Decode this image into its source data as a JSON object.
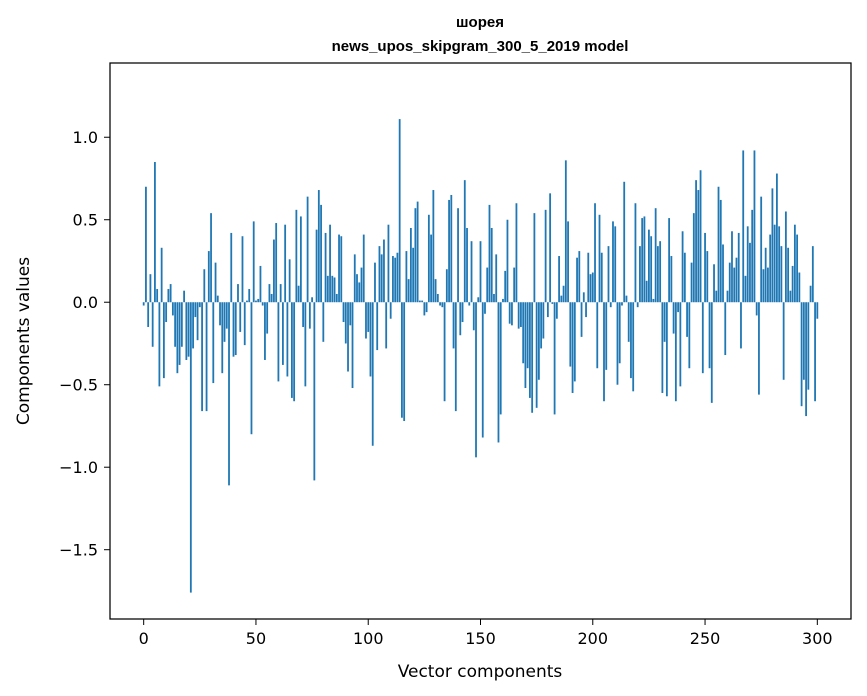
{
  "chart_data": {
    "type": "bar",
    "title": "шорея",
    "subtitle": "news_upos_skipgram_300_5_2019 model",
    "xlabel": "Vector components",
    "ylabel": "Components values",
    "xlim": [
      -15,
      315
    ],
    "ylim": [
      -1.92,
      1.45
    ],
    "xticks": [
      0,
      50,
      100,
      150,
      200,
      250,
      300
    ],
    "yticks": [
      -1.5,
      -1.0,
      -0.5,
      0.0,
      0.5,
      1.0
    ],
    "ytick_labels": [
      "−1.5",
      "−1.0",
      "−0.5",
      "0.0",
      "0.5",
      "1.0"
    ],
    "bar_color": "#1f77b4",
    "x": "0..299",
    "values": [
      -0.02,
      0.7,
      -0.15,
      0.17,
      -0.27,
      0.85,
      0.08,
      -0.51,
      0.33,
      -0.46,
      -0.12,
      0.08,
      0.11,
      -0.08,
      -0.27,
      -0.43,
      -0.38,
      -0.27,
      0.07,
      -0.35,
      -0.33,
      -1.76,
      -0.28,
      -0.09,
      -0.23,
      -0.03,
      -0.66,
      0.2,
      -0.66,
      0.31,
      0.54,
      -0.49,
      0.24,
      0.04,
      -0.14,
      -0.43,
      -0.24,
      -0.16,
      -1.11,
      0.42,
      -0.33,
      -0.32,
      0.11,
      -0.18,
      0.4,
      -0.26,
      0.01,
      0.08,
      -0.8,
      0.49,
      0.01,
      0.02,
      0.22,
      -0.02,
      -0.35,
      -0.19,
      0.11,
      0.05,
      0.38,
      0.48,
      -0.48,
      0.11,
      -0.38,
      0.47,
      -0.45,
      0.26,
      -0.58,
      -0.6,
      0.56,
      0.1,
      0.52,
      -0.15,
      -0.51,
      0.64,
      -0.16,
      0.03,
      -1.08,
      0.44,
      0.68,
      0.59,
      -0.24,
      0.42,
      0.16,
      0.47,
      0.16,
      0.15,
      0.05,
      0.41,
      0.4,
      -0.12,
      -0.25,
      -0.42,
      -0.14,
      -0.52,
      0.29,
      0.17,
      0.12,
      0.21,
      0.41,
      -0.22,
      -0.18,
      -0.45,
      -0.87,
      0.24,
      -0.29,
      0.34,
      0.29,
      0.38,
      -0.28,
      0.47,
      -0.1,
      0.28,
      0.27,
      0.3,
      1.11,
      -0.7,
      -0.72,
      0.31,
      0.14,
      0.45,
      0.33,
      0.57,
      0.61,
      0.01,
      0.01,
      -0.08,
      -0.06,
      0.53,
      0.41,
      0.68,
      0.14,
      0.05,
      -0.02,
      -0.03,
      -0.6,
      0.2,
      0.62,
      0.65,
      -0.28,
      -0.66,
      0.57,
      -0.2,
      -0.12,
      0.74,
      0.45,
      -0.02,
      0.37,
      -0.17,
      -0.94,
      0.03,
      0.37,
      -0.82,
      -0.07,
      0.21,
      0.59,
      0.45,
      0.05,
      0.29,
      -0.85,
      -0.68,
      0.02,
      0.19,
      0.5,
      -0.13,
      -0.14,
      0.21,
      0.6,
      -0.16,
      -0.15,
      -0.37,
      -0.52,
      -0.4,
      -0.58,
      -0.67,
      0.54,
      -0.64,
      -0.47,
      -0.28,
      -0.22,
      0.56,
      -0.09,
      0.66,
      -0.01,
      -0.68,
      -0.1,
      0.28,
      0.04,
      0.1,
      0.86,
      0.49,
      -0.39,
      -0.55,
      -0.48,
      0.27,
      0.31,
      -0.21,
      0.06,
      -0.09,
      0.3,
      0.17,
      0.18,
      0.6,
      -0.4,
      0.53,
      0.3,
      -0.6,
      -0.41,
      0.34,
      -0.03,
      0.49,
      0.46,
      -0.5,
      -0.37,
      -0.02,
      0.73,
      0.04,
      -0.24,
      -0.46,
      -0.54,
      0.6,
      -0.03,
      0.34,
      0.51,
      0.52,
      0.13,
      0.44,
      0.4,
      0.02,
      0.57,
      0.34,
      0.37,
      -0.55,
      -0.24,
      -0.57,
      0.51,
      0.28,
      -0.19,
      -0.6,
      -0.06,
      -0.51,
      0.43,
      0.3,
      -0.21,
      -0.4,
      0.24,
      0.54,
      0.74,
      0.68,
      0.8,
      -0.43,
      0.42,
      0.31,
      -0.4,
      -0.61,
      0.23,
      0.07,
      0.7,
      0.62,
      0.35,
      -0.32,
      0.07,
      0.24,
      0.43,
      0.21,
      0.27,
      0.42,
      -0.28,
      0.92,
      0.16,
      0.46,
      0.36,
      0.56,
      0.92,
      -0.08,
      -0.56,
      0.64,
      0.2,
      0.33,
      0.21,
      0.41,
      0.69,
      0.47,
      0.78,
      0.46,
      0.34,
      -0.47,
      0.55,
      0.33,
      0.07,
      0.22,
      0.47,
      0.41,
      0.18,
      -0.63,
      -0.47,
      -0.69,
      -0.53,
      0.1,
      0.34,
      -0.6,
      -0.1
    ]
  }
}
